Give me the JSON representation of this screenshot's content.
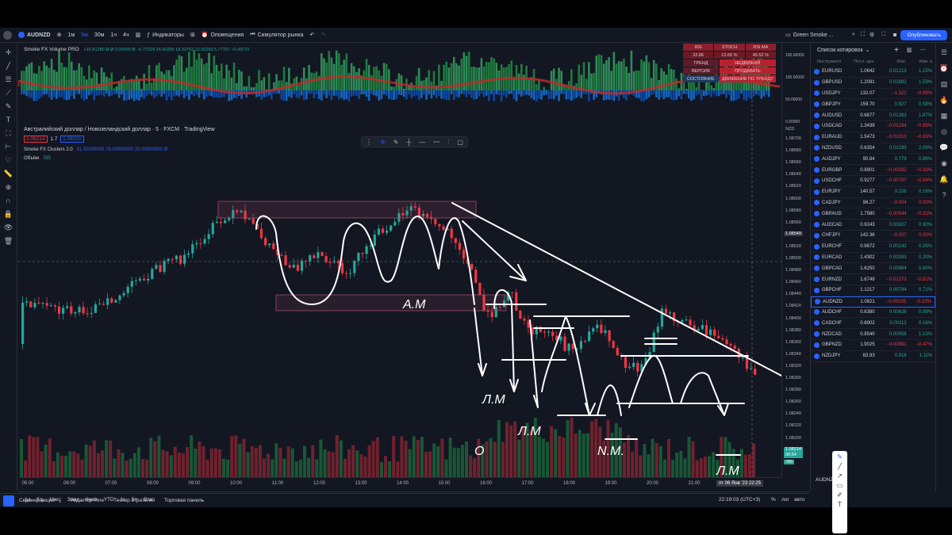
{
  "topbar": {
    "symbol": "AUDNZD",
    "intervals": [
      "1м",
      "5м",
      "30м",
      "1ч",
      "4ч"
    ],
    "indicators": "Индикаторы",
    "alerts": "Оповещения",
    "replay": "Симулятор рынка",
    "layout_name": "Green Smoke ...",
    "publish": "Опубликовать"
  },
  "volume_indicator": {
    "name": "Smoke FX Volume PRO",
    "values": "+16.81280 Ø Ø 0.00000 Ø −6.77229 24.60260 18.32762 12.05265 5.77767 +0.49731"
  },
  "rsi_table": {
    "rows": [
      [
        "RSI",
        "STOCH",
        "RSI MA"
      ],
      [
        "32.86",
        "12.65 %",
        "45.52 %"
      ],
      [
        "ТРЕНД",
        "НЕДВИЖИЙ"
      ],
      [
        "ВЕРСИЯ",
        "ПРОДАВАТЬ"
      ],
      [
        "СОСТОЯНИЕ",
        "ДВИЖЕНИЕ ПО ТРЕНДУ"
      ]
    ]
  },
  "main": {
    "title": "Австралийский доллар / Новозеландский доллар · 5 · FXCM · TradingView",
    "bid": "1.08214",
    "spread": "1.7",
    "ask": "1.08231",
    "clusters": "Smoke FX Clusters 2.0",
    "clusters_vals": "31.00000000 76.00000000 20.00000000 Ø",
    "volume_label": "Объём",
    "volume_val": "785"
  },
  "price_axis": {
    "currency": "NZD",
    "ticks": [
      "1.08700",
      "1.08680",
      "1.08660",
      "1.08640",
      "1.08620",
      "1.08600",
      "1.08580",
      "1.08560",
      "1.08540",
      "1.08520",
      "1.08500",
      "1.08480",
      "1.08460",
      "1.08440",
      "1.08420",
      "1.08400",
      "1.08380",
      "1.08360",
      "1.08340",
      "1.08320",
      "1.08300",
      "1.08280",
      "1.08260",
      "1.08240",
      "1.08220",
      "1.08200",
      "1.08180"
    ],
    "cursor_price": "1.08549",
    "last_price": "1.08214",
    "countdown": "00:54",
    "vol_badge": "785",
    "vol_ticks": [
      "150.00000",
      "100.00000",
      "50.00000",
      "0.00000"
    ]
  },
  "time_axis": {
    "ticks": [
      "05:00",
      "06:00",
      "07:00",
      "08:00",
      "09:00",
      "10:00",
      "11:00",
      "12:00",
      "13:00",
      "14:00",
      "15:00",
      "16:00",
      "17:00",
      "18:00",
      "19:00",
      "20:00",
      "21:00"
    ],
    "cursor": "пт 06 Янв '23   22:25"
  },
  "bottom": {
    "ranges": [
      "1д",
      "5д",
      "1мес",
      "3мес",
      "6мес",
      "YTD",
      "1г",
      "5л",
      "Все"
    ],
    "clock": "22:19:03 (UTC+3)",
    "percent": "%",
    "log": "лог",
    "auto": "авто"
  },
  "panels": [
    "Скринер акций",
    "Редактор Pine",
    "Тестер стратегий",
    "Торговая панель"
  ],
  "annotations": [
    "А.М",
    "Л.М",
    "Л.М",
    "О",
    "N.M.",
    "Л.М"
  ],
  "watchlist": {
    "title": "Список котировок",
    "cols": [
      "Инструмент",
      "Посл. цен",
      "Изм.",
      "Изм. в"
    ],
    "rows": [
      {
        "sym": "EURUSD",
        "price": "1.0642",
        "chg": "0.01213",
        "pct": "1.15%",
        "dir": "up"
      },
      {
        "sym": "GBPUSD",
        "price": "1.2091",
        "chg": "0.01892",
        "pct": "1.59%",
        "dir": "up"
      },
      {
        "sym": "USDJPY",
        "price": "132.07",
        "chg": "−1.322",
        "pct": "−0.99%",
        "dir": "down"
      },
      {
        "sym": "GBPJPY",
        "price": "159.70",
        "chg": "0.927",
        "pct": "0.58%",
        "dir": "up"
      },
      {
        "sym": "AUDUSD",
        "price": "0.6877",
        "chg": "0.01263",
        "pct": "1.87%",
        "dir": "up"
      },
      {
        "sym": "USDCAD",
        "price": "1.3439",
        "chg": "−0.01294",
        "pct": "−0.95%",
        "dir": "down"
      },
      {
        "sym": "EURAUD",
        "price": "1.5473",
        "chg": "−0.01013",
        "pct": "−0.65%",
        "dir": "down"
      },
      {
        "sym": "NZDUSD",
        "price": "0.6354",
        "chg": "0.01299",
        "pct": "2.09%",
        "dir": "up"
      },
      {
        "sym": "AUDJPY",
        "price": "90.84",
        "chg": "0.779",
        "pct": "0.86%",
        "dir": "up"
      },
      {
        "sym": "EURGBP",
        "price": "0.8801",
        "chg": "−0.00292",
        "pct": "−0.33%",
        "dir": "down"
      },
      {
        "sym": "USDCHF",
        "price": "0.9277",
        "chg": "−0.00787",
        "pct": "−0.84%",
        "dir": "down"
      },
      {
        "sym": "EURJPY",
        "price": "140.57",
        "chg": "0.226",
        "pct": "0.16%",
        "dir": "up"
      },
      {
        "sym": "CADJPY",
        "price": "98.27",
        "chg": "−0.004",
        "pct": "0.00%",
        "dir": "down"
      },
      {
        "sym": "GBPAUD",
        "price": "1.7580",
        "chg": "−0.00544",
        "pct": "−0.31%",
        "dir": "down"
      },
      {
        "sym": "AUDCAD",
        "price": "0.9243",
        "chg": "0.00827",
        "pct": "0.90%",
        "dir": "up"
      },
      {
        "sym": "CHFJPY",
        "price": "142.36",
        "chg": "−0.007",
        "pct": "0.00%",
        "dir": "down"
      },
      {
        "sym": "EURCHF",
        "price": "0.9872",
        "chg": "0.00242",
        "pct": "0.25%",
        "dir": "up"
      },
      {
        "sym": "EURCAD",
        "price": "1.4302",
        "chg": "0.00283",
        "pct": "0.20%",
        "dir": "up"
      },
      {
        "sym": "GBPCAD",
        "price": "1.6250",
        "chg": "0.00964",
        "pct": "0.60%",
        "dir": "up"
      },
      {
        "sym": "EURNZD",
        "price": "1.6749",
        "chg": "−0.01373",
        "pct": "−0.81%",
        "dir": "down"
      },
      {
        "sym": "GBPCHF",
        "price": "1.1217",
        "chg": "0.00794",
        "pct": "0.71%",
        "dir": "up"
      },
      {
        "sym": "AUDNZD",
        "price": "1.0821",
        "chg": "−0.00105",
        "pct": "−0.10%",
        "dir": "down"
      },
      {
        "sym": "AUDCHF",
        "price": "0.6380",
        "chg": "0.00626",
        "pct": "0.99%",
        "dir": "up"
      },
      {
        "sym": "CADCHF",
        "price": "0.6902",
        "chg": "0.00112",
        "pct": "0.16%",
        "dir": "up"
      },
      {
        "sym": "NZDCAD",
        "price": "0.8540",
        "chg": "0.00958",
        "pct": "1.13%",
        "dir": "up"
      },
      {
        "sym": "GBPNZD",
        "price": "1.9025",
        "chg": "−0.00891",
        "pct": "−0.47%",
        "dir": "down"
      },
      {
        "sym": "NZDJPY",
        "price": "83.93",
        "chg": "0.918",
        "pct": "1.11%",
        "dir": "up"
      }
    ],
    "footer_symbol": "AUDNZD"
  },
  "colors": {
    "up": "#26a69a",
    "down": "#f23645",
    "accent": "#2962ff",
    "bg": "#131722"
  }
}
